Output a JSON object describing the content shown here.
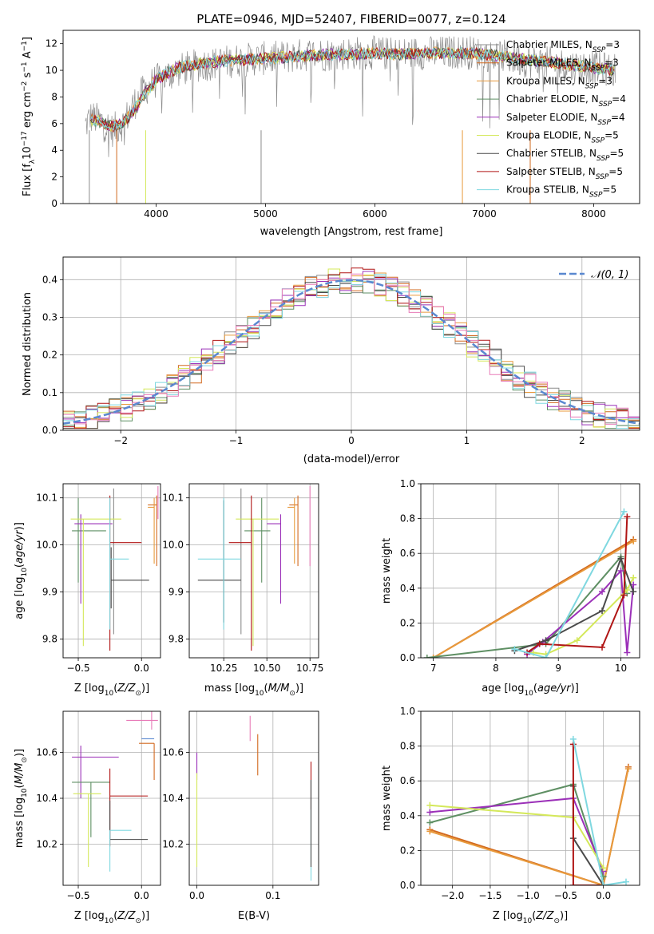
{
  "figure_title": "PLATE=0946, MJD=52407, FIBERID=0077, z=0.124",
  "colors": {
    "Chabrier MILES": "#8c8c8c",
    "Salpeter MILES": "#d2691e",
    "Kroupa MILES": "#e89a3c",
    "Chabrier ELODIE": "#5e8f63",
    "Salpeter ELODIE": "#9b30b8",
    "Kroupa ELODIE": "#d4e85a",
    "Chabrier STELIB": "#4a4a4a",
    "Salpeter STELIB": "#b01515",
    "Kroupa STELIB": "#7fd8e0",
    "extra_pink": "#e87bb8",
    "gauss": "#5a88d0"
  },
  "chart_data": [
    {
      "id": "spectrum",
      "type": "line",
      "title": "PLATE=0946, MJD=52407, FIBERID=0077, z=0.124",
      "xlabel": "wavelength [Angstrom, rest frame]",
      "ylabel": "Flux [f_λ10^-17 erg cm^-2 s^-1 A^-1]",
      "xlim": [
        3150,
        8420
      ],
      "ylim": [
        0,
        13
      ],
      "xticks": [
        4000,
        5000,
        6000,
        7000,
        8000
      ],
      "yticks": [
        0,
        2,
        4,
        6,
        8,
        10,
        12
      ],
      "legend": "upper right",
      "grid": false,
      "legend_entries": [
        {
          "name": "Chabrier MILES",
          "sub": "SSP",
          "n": "3",
          "color": "#8c8c8c"
        },
        {
          "name": "Salpeter MILES",
          "sub": "SSP",
          "n": "3",
          "color": "#d2691e"
        },
        {
          "name": "Kroupa MILES",
          "sub": "SSP",
          "n": "3",
          "color": "#e89a3c"
        },
        {
          "name": "Chabrier ELODIE",
          "sub": "SSP",
          "n": "4",
          "color": "#5e8f63"
        },
        {
          "name": "Salpeter ELODIE",
          "sub": "SSP",
          "n": "4",
          "color": "#9b30b8"
        },
        {
          "name": "Kroupa ELODIE",
          "sub": "SSP",
          "n": "5",
          "color": "#d4e85a"
        },
        {
          "name": "Chabrier STELIB",
          "sub": "SSP",
          "n": "5",
          "color": "#4a4a4a"
        },
        {
          "name": "Salpeter STELIB",
          "sub": "SSP",
          "n": "5",
          "color": "#b01515"
        },
        {
          "name": "Kroupa STELIB",
          "sub": "SSP",
          "n": "5",
          "color": "#7fd8e0"
        }
      ],
      "data_envelope": {
        "x": [
          3350,
          3400,
          3500,
          3600,
          3700,
          3800,
          3900,
          4000,
          4200,
          4400,
          4600,
          4800,
          5000,
          5200,
          5400,
          5600,
          5800,
          6000,
          6200,
          6400,
          6600,
          6800,
          7000,
          7200,
          7400,
          7600,
          7800,
          8000,
          8200
        ],
        "y": [
          5.8,
          6.5,
          6.2,
          5.5,
          6.0,
          7.5,
          8.6,
          9.2,
          10.0,
          10.4,
          10.6,
          10.8,
          10.9,
          11.0,
          11.2,
          11.2,
          11.3,
          11.3,
          11.2,
          11.3,
          11.3,
          11.4,
          11.2,
          11.0,
          10.7,
          10.5,
          10.3,
          10.2,
          10.0
        ]
      },
      "model_envelope": {
        "x": [
          3400,
          3500,
          3600,
          3700,
          3800,
          3900,
          4000,
          4200,
          4400,
          4600,
          4800,
          5000,
          5200,
          5400,
          5600,
          5800,
          6000,
          6200,
          6400,
          6600,
          6800,
          7000,
          7200,
          7400,
          7600,
          7800,
          8000,
          8200
        ],
        "y": [
          6.3,
          6.1,
          5.8,
          6.0,
          7.0,
          8.3,
          9.3,
          10.2,
          10.5,
          10.7,
          10.8,
          10.9,
          11.0,
          11.1,
          11.2,
          11.2,
          11.3,
          11.2,
          11.3,
          11.3,
          11.3,
          11.2,
          11.0,
          10.8,
          10.6,
          10.4,
          10.2,
          10.0
        ]
      }
    },
    {
      "id": "residuals",
      "type": "line",
      "xlabel": "(data-model)/error",
      "ylabel": "Normed distribution",
      "xlim": [
        -2.5,
        2.5
      ],
      "ylim": [
        0,
        0.46
      ],
      "xticks": [
        -2,
        -1,
        0,
        1,
        2
      ],
      "yticks": [
        0.0,
        0.1,
        0.2,
        0.3,
        0.4
      ],
      "grid": true,
      "legend": "upper right",
      "legend_entries": [
        {
          "name": "𝒩(0, 1)",
          "color": "#5a88d0"
        }
      ],
      "gaussian": {
        "mu": 0,
        "sigma": 1
      },
      "hist_bin_width": 0.1
    },
    {
      "id": "age_vs_Z",
      "type": "scatter",
      "xlabel": "Z [log10(Z/Z⊙)]",
      "ylabel": "age  [log10(age/yr)]",
      "xlim": [
        -0.62,
        0.15
      ],
      "ylim": [
        9.76,
        10.13
      ],
      "xticks": [
        -0.5,
        0.0
      ],
      "yticks": [
        9.8,
        9.9,
        10.0,
        10.1
      ],
      "grid": true,
      "points": [
        {
          "color": "#8c8c8c",
          "x": -0.22,
          "xerr": [
            0.0,
            0.0
          ],
          "y": 10.1,
          "yerr": [
            0.29,
            0.02
          ]
        },
        {
          "color": "#d2691e",
          "x": 0.12,
          "xerr": [
            0.07,
            0.0
          ],
          "y": 10.085,
          "yerr": [
            0.13,
            0.02
          ]
        },
        {
          "color": "#e89a3c",
          "x": 0.1,
          "xerr": [
            0.05,
            0.0
          ],
          "y": 10.08,
          "yerr": [
            0.12,
            0.02
          ]
        },
        {
          "color": "#5e8f63",
          "x": -0.5,
          "xerr": [
            0.05,
            0.22
          ],
          "y": 10.03,
          "yerr": [
            0.11,
            0.07
          ]
        },
        {
          "color": "#9b30b8",
          "x": -0.48,
          "xerr": [
            0.05,
            0.25
          ],
          "y": 10.045,
          "yerr": [
            0.17,
            0.02
          ]
        },
        {
          "color": "#d4e85a",
          "x": -0.46,
          "xerr": [
            0.1,
            0.3
          ],
          "y": 10.055,
          "yerr": [
            0.27,
            0.0
          ]
        },
        {
          "color": "#4a4a4a",
          "x": -0.24,
          "xerr": [
            0.0,
            0.3
          ],
          "y": 9.925,
          "yerr": [
            0.06,
            0.07
          ]
        },
        {
          "color": "#b01515",
          "x": -0.25,
          "xerr": [
            0.0,
            0.25
          ],
          "y": 10.005,
          "yerr": [
            0.23,
            0.1
          ]
        },
        {
          "color": "#7fd8e0",
          "x": -0.25,
          "xerr": [
            0.0,
            0.15
          ],
          "y": 9.97,
          "yerr": [
            0.15,
            0.13
          ]
        },
        {
          "color": "#e87bb8",
          "x": 0.13,
          "xerr": [
            0.0,
            0.0
          ],
          "y": 10.085,
          "yerr": [
            0.03,
            0.04
          ]
        }
      ]
    },
    {
      "id": "age_vs_mass",
      "type": "scatter",
      "xlabel": "mass [log10(M/M⊙)]",
      "ylabel": "",
      "xlim": [
        10.05,
        10.8
      ],
      "ylim": [
        9.76,
        10.13
      ],
      "xticks": [
        10.25,
        10.5,
        10.75
      ],
      "yticks": [
        9.8,
        9.9,
        10.0,
        10.1
      ],
      "grid": true,
      "points": [
        {
          "color": "#8c8c8c",
          "x": 10.35,
          "xerr": [
            0.0,
            0.0
          ],
          "y": 10.1,
          "yerr": [
            0.29,
            0.02
          ]
        },
        {
          "color": "#d2691e",
          "x": 10.68,
          "xerr": [
            0.05,
            0.0
          ],
          "y": 10.085,
          "yerr": [
            0.13,
            0.02
          ]
        },
        {
          "color": "#e89a3c",
          "x": 10.66,
          "xerr": [
            0.04,
            0.0
          ],
          "y": 10.08,
          "yerr": [
            0.12,
            0.02
          ]
        },
        {
          "color": "#5e8f63",
          "x": 10.47,
          "xerr": [
            0.1,
            0.05
          ],
          "y": 10.03,
          "yerr": [
            0.11,
            0.07
          ]
        },
        {
          "color": "#9b30b8",
          "x": 10.58,
          "xerr": [
            0.08,
            0.0
          ],
          "y": 10.045,
          "yerr": [
            0.17,
            0.02
          ]
        },
        {
          "color": "#d4e85a",
          "x": 10.42,
          "xerr": [
            0.1,
            0.15
          ],
          "y": 10.055,
          "yerr": [
            0.27,
            0.0
          ]
        },
        {
          "color": "#4a4a4a",
          "x": 10.25,
          "xerr": [
            0.15,
            0.1
          ],
          "y": 9.925,
          "yerr": [
            0.09,
            0.17
          ]
        },
        {
          "color": "#b01515",
          "x": 10.41,
          "xerr": [
            0.13,
            0.0
          ],
          "y": 10.005,
          "yerr": [
            0.23,
            0.1
          ]
        },
        {
          "color": "#7fd8e0",
          "x": 10.25,
          "xerr": [
            0.15,
            0.1
          ],
          "y": 9.97,
          "yerr": [
            0.15,
            0.13
          ]
        },
        {
          "color": "#e87bb8",
          "x": 10.75,
          "xerr": [
            0.0,
            0.0
          ],
          "y": 10.085,
          "yerr": [
            0.13,
            0.04
          ]
        }
      ]
    },
    {
      "id": "weight_vs_age",
      "type": "line",
      "xlabel": "age  [log10(age/yr)]",
      "ylabel": "mass weight",
      "xlim": [
        6.8,
        10.3
      ],
      "ylim": [
        0,
        1.0
      ],
      "xticks": [
        7,
        8,
        9,
        10
      ],
      "yticks": [
        0.0,
        0.2,
        0.4,
        0.6,
        0.8,
        1.0
      ],
      "grid": true,
      "series": [
        {
          "color": "#d2691e",
          "x": [
            7.0,
            10.2
          ],
          "y": [
            0.0,
            0.68
          ]
        },
        {
          "color": "#e89a3c",
          "x": [
            7.0,
            10.2
          ],
          "y": [
            0.0,
            0.67
          ]
        },
        {
          "color": "#5e8f63",
          "x": [
            6.9,
            8.8,
            10.0,
            10.1
          ],
          "y": [
            0.0,
            0.08,
            0.58,
            0.37
          ]
        },
        {
          "color": "#9b30b8",
          "x": [
            8.5,
            8.75,
            9.7,
            10.0,
            10.1,
            10.2
          ],
          "y": [
            0.02,
            0.09,
            0.38,
            0.5,
            0.03,
            0.42
          ]
        },
        {
          "color": "#d4e85a",
          "x": [
            8.6,
            8.8,
            9.3,
            10.1,
            10.2
          ],
          "y": [
            0.03,
            0.02,
            0.1,
            0.39,
            0.46
          ]
        },
        {
          "color": "#4a4a4a",
          "x": [
            8.3,
            8.8,
            9.7,
            10.0,
            10.2
          ],
          "y": [
            0.04,
            0.1,
            0.27,
            0.57,
            0.38
          ]
        },
        {
          "color": "#b01515",
          "x": [
            8.5,
            8.7,
            9.7,
            10.05,
            10.1
          ],
          "y": [
            0.03,
            0.08,
            0.06,
            0.36,
            0.81
          ]
        },
        {
          "color": "#7fd8e0",
          "x": [
            8.3,
            8.8,
            10.05
          ],
          "y": [
            0.05,
            0.0,
            0.84
          ]
        }
      ]
    },
    {
      "id": "mass_vs_Z",
      "type": "scatter",
      "xlabel": "Z [log10(Z/Z⊙)]",
      "ylabel": "mass [log10(M/M⊙)]",
      "xlim": [
        -0.62,
        0.15
      ],
      "ylim": [
        10.02,
        10.78
      ],
      "xticks": [
        -0.5,
        0.0
      ],
      "yticks": [
        10.2,
        10.4,
        10.6
      ],
      "grid": true,
      "points": [
        {
          "color": "#e87bb8",
          "x": 0.08,
          "xerr": [
            0.2,
            0.05
          ],
          "y": 10.74,
          "yerr": [
            0.04,
            0.04
          ]
        },
        {
          "color": "#d2691e",
          "x": 0.1,
          "xerr": [
            0.12,
            0.0
          ],
          "y": 10.64,
          "yerr": [
            0.16,
            0.0
          ]
        },
        {
          "color": "#5a88d0",
          "x": 0.1,
          "xerr": [
            0.1,
            0.0
          ],
          "y": 10.66,
          "yerr": [
            0.0,
            0.0
          ]
        },
        {
          "color": "#9b30b8",
          "x": -0.48,
          "xerr": [
            0.07,
            0.3
          ],
          "y": 10.58,
          "yerr": [
            0.18,
            0.05
          ]
        },
        {
          "color": "#5e8f63",
          "x": -0.4,
          "xerr": [
            0.15,
            0.15
          ],
          "y": 10.47,
          "yerr": [
            0.24,
            0.0
          ]
        },
        {
          "color": "#d4e85a",
          "x": -0.42,
          "xerr": [
            0.12,
            0.1
          ],
          "y": 10.42,
          "yerr": [
            0.32,
            0.0
          ]
        },
        {
          "color": "#b01515",
          "x": -0.25,
          "xerr": [
            0.0,
            0.3
          ],
          "y": 10.41,
          "yerr": [
            0.22,
            0.12
          ]
        },
        {
          "color": "#4a4a4a",
          "x": -0.25,
          "xerr": [
            0.0,
            0.3
          ],
          "y": 10.22,
          "yerr": [
            0.0,
            0.17
          ]
        },
        {
          "color": "#7fd8e0",
          "x": -0.25,
          "xerr": [
            0.0,
            0.17
          ],
          "y": 10.26,
          "yerr": [
            0.18,
            0.0
          ]
        }
      ]
    },
    {
      "id": "mass_vs_ebv",
      "type": "scatter",
      "xlabel": "E(B-V)",
      "ylabel": "",
      "xlim": [
        -0.01,
        0.16
      ],
      "ylim": [
        10.02,
        10.78
      ],
      "xticks": [
        0.0,
        0.1
      ],
      "yticks": [
        10.2,
        10.4,
        10.6
      ],
      "grid": true,
      "points": [
        {
          "color": "#9b30b8",
          "x": 0.0,
          "y": 10.58,
          "yerr": [
            0.1,
            0.02
          ]
        },
        {
          "color": "#d4e85a",
          "x": 0.0,
          "y": 10.42,
          "yerr": [
            0.32,
            0.09
          ]
        },
        {
          "color": "#e87bb8",
          "x": 0.07,
          "y": 10.74,
          "yerr": [
            0.09,
            0.02
          ]
        },
        {
          "color": "#d2691e",
          "x": 0.08,
          "y": 10.64,
          "yerr": [
            0.14,
            0.04
          ]
        },
        {
          "color": "#b01515",
          "x": 0.15,
          "y": 10.49,
          "yerr": [
            0.14,
            0.07
          ]
        },
        {
          "color": "#7fd8e0",
          "x": 0.15,
          "y": 10.26,
          "yerr": [
            0.22,
            0.22
          ]
        },
        {
          "color": "#4a4a4a",
          "x": 0.15,
          "y": 10.3,
          "yerr": [
            0.2,
            0.18
          ]
        }
      ]
    },
    {
      "id": "weight_vs_Z",
      "type": "line",
      "xlabel": "Z [log10(Z/Z⊙)]",
      "ylabel": "mass weight",
      "xlim": [
        -2.42,
        0.48
      ],
      "ylim": [
        0,
        1.0
      ],
      "xticks": [
        -2.0,
        -1.5,
        -1.0,
        -0.5,
        0.0
      ],
      "yticks": [
        0.0,
        0.2,
        0.4,
        0.6,
        0.8,
        1.0
      ],
      "grid": true,
      "series": [
        {
          "color": "#d2691e",
          "x": [
            -2.3,
            0.0,
            0.33
          ],
          "y": [
            0.32,
            0.0,
            0.68
          ]
        },
        {
          "color": "#e89a3c",
          "x": [
            -2.3,
            0.0,
            0.33
          ],
          "y": [
            0.31,
            0.0,
            0.67
          ]
        },
        {
          "color": "#5e8f63",
          "x": [
            -2.3,
            -0.4,
            0.0
          ],
          "y": [
            0.36,
            0.58,
            0.05
          ]
        },
        {
          "color": "#9b30b8",
          "x": [
            -2.3,
            -0.4,
            0.0
          ],
          "y": [
            0.42,
            0.5,
            0.08
          ]
        },
        {
          "color": "#d4e85a",
          "x": [
            -2.3,
            -0.4,
            0.0
          ],
          "y": [
            0.46,
            0.39,
            0.1
          ]
        },
        {
          "color": "#4a4a4a",
          "x": [
            -0.4,
            -0.4,
            0.0
          ],
          "y": [
            0.57,
            0.27,
            0.0
          ]
        },
        {
          "color": "#b01515",
          "x": [
            -0.4,
            -0.4,
            0.0
          ],
          "y": [
            0.81,
            0.0,
            0.0
          ]
        },
        {
          "color": "#7fd8e0",
          "x": [
            -0.4,
            0.0,
            0.3
          ],
          "y": [
            0.84,
            0.0,
            0.02
          ]
        }
      ]
    }
  ]
}
